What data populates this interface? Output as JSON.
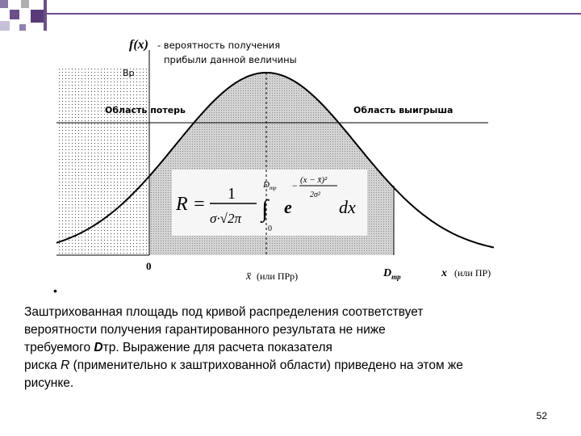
{
  "header": {
    "f_label": "f(x)",
    "f_caption_1": "- вероятность получения",
    "f_caption_2": "прибыли данной величины"
  },
  "diagram": {
    "peak_label": "Вр",
    "loss_area": "Область потерь",
    "win_area": "Область выигрыша",
    "origin": "0",
    "mean_label": "x̄",
    "mean_note": "(или ПРр)",
    "d_label": "D",
    "d_sub": "тр",
    "x_label": "x",
    "x_note": "(или ПР)"
  },
  "formula": {
    "lhs": "R =",
    "num": "1",
    "den": "σ·√2π",
    "upper": "D",
    "upper_sub": "тр",
    "lower": "0",
    "integral": "∫",
    "base": "e",
    "exp_sign": "−",
    "exp_num": "(x − x̄)²",
    "exp_den": "2σ²",
    "dx": "dx"
  },
  "text": {
    "line1": "Заштрихованная площадь под кривой распределения соответствует",
    "line2": "вероятности получения гарантированного результата не ниже",
    "line3_a": "требуемого ",
    "line3_b": "D",
    "line3_c": "тр. Выражение для расчета показателя",
    "line4_a": "риска ",
    "line4_b": "R",
    "line4_c": " (применительно к заштрихованной области) приведено на этом же",
    "line5": "рисунке."
  },
  "page_number": "52"
}
